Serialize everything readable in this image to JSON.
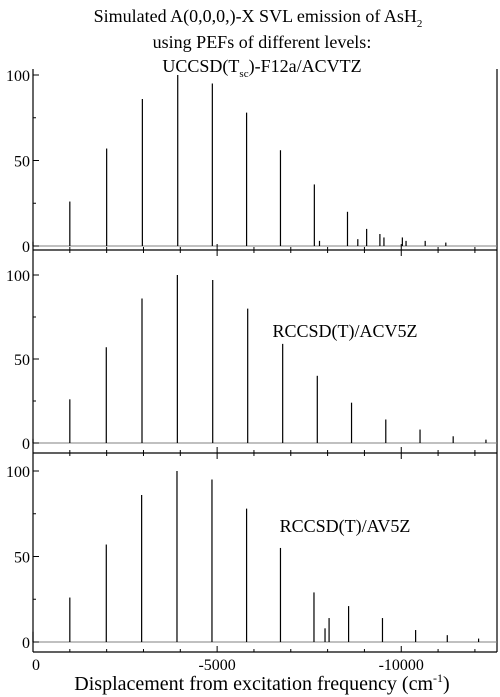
{
  "title": {
    "line1": "Simulated A(0,0,0,)-X SVL emission of AsH",
    "line1_sub": "2",
    "line2": "using PEFs of different levels:",
    "line3_a": "UCCSD(T",
    "line3_sub": "sc",
    "line3_b": ")-F12a/ACVTZ"
  },
  "xlabel": {
    "text": "Displacement from excitation frequency (cm",
    "sup": "-1",
    "close": ")"
  },
  "chart_data": [
    {
      "type": "bar",
      "label": "",
      "ylim": [
        0,
        100
      ],
      "xlim": [
        0,
        -12600
      ],
      "yticks": [
        "0",
        "50",
        "100"
      ],
      "peaks": [
        {
          "x": 0,
          "y": 2.5
        },
        {
          "x": -1000,
          "y": 26
        },
        {
          "x": -2000,
          "y": 57
        },
        {
          "x": -2970,
          "y": 86
        },
        {
          "x": -3930,
          "y": 100
        },
        {
          "x": -4870,
          "y": 95
        },
        {
          "x": -5800,
          "y": 78
        },
        {
          "x": -6720,
          "y": 56
        },
        {
          "x": -7640,
          "y": 36
        },
        {
          "x": -7780,
          "y": 3
        },
        {
          "x": -8540,
          "y": 20
        },
        {
          "x": -8820,
          "y": 4
        },
        {
          "x": -9060,
          "y": 10
        },
        {
          "x": -9420,
          "y": 7
        },
        {
          "x": -9530,
          "y": 5
        },
        {
          "x": -10030,
          "y": 5
        },
        {
          "x": -10130,
          "y": 3
        },
        {
          "x": -10650,
          "y": 3
        },
        {
          "x": -11210,
          "y": 2
        }
      ]
    },
    {
      "type": "bar",
      "label": "RCCSD(T)/ACV5Z",
      "ylim": [
        0,
        100
      ],
      "xlim": [
        0,
        -12600
      ],
      "yticks": [
        "0",
        "50",
        "100"
      ],
      "peaks": [
        {
          "x": 0,
          "y": 2.5
        },
        {
          "x": -1000,
          "y": 26
        },
        {
          "x": -1990,
          "y": 57
        },
        {
          "x": -2960,
          "y": 86
        },
        {
          "x": -3920,
          "y": 100
        },
        {
          "x": -4880,
          "y": 97
        },
        {
          "x": -5830,
          "y": 80
        },
        {
          "x": -6780,
          "y": 59
        },
        {
          "x": -7720,
          "y": 40
        },
        {
          "x": -8650,
          "y": 24
        },
        {
          "x": -9580,
          "y": 14
        },
        {
          "x": -10510,
          "y": 8
        },
        {
          "x": -11410,
          "y": 4
        },
        {
          "x": -12300,
          "y": 2
        }
      ]
    },
    {
      "type": "bar",
      "label": "RCCSD(T)/AV5Z",
      "ylim": [
        0,
        100
      ],
      "xlim": [
        0,
        -12600
      ],
      "yticks": [
        "0",
        "50",
        "100"
      ],
      "peaks": [
        {
          "x": 0,
          "y": 6
        },
        {
          "x": -1000,
          "y": 26
        },
        {
          "x": -1990,
          "y": 57
        },
        {
          "x": -2950,
          "y": 86
        },
        {
          "x": -3910,
          "y": 100
        },
        {
          "x": -4860,
          "y": 95
        },
        {
          "x": -5800,
          "y": 78
        },
        {
          "x": -6720,
          "y": 55
        },
        {
          "x": -7630,
          "y": 29
        },
        {
          "x": -7930,
          "y": 8
        },
        {
          "x": -8040,
          "y": 14
        },
        {
          "x": -8570,
          "y": 21
        },
        {
          "x": -9490,
          "y": 14
        },
        {
          "x": -10390,
          "y": 7
        },
        {
          "x": -11250,
          "y": 4
        },
        {
          "x": -12100,
          "y": 2
        }
      ]
    }
  ],
  "x_axis": {
    "ticks": [
      {
        "value": 0,
        "label": "0"
      },
      {
        "value": -5000,
        "label": "-5000"
      },
      {
        "value": -10000,
        "label": "-10000"
      }
    ],
    "minor_step": 1000
  },
  "colors": {
    "ink": "#000000",
    "baseline": "#808080"
  }
}
